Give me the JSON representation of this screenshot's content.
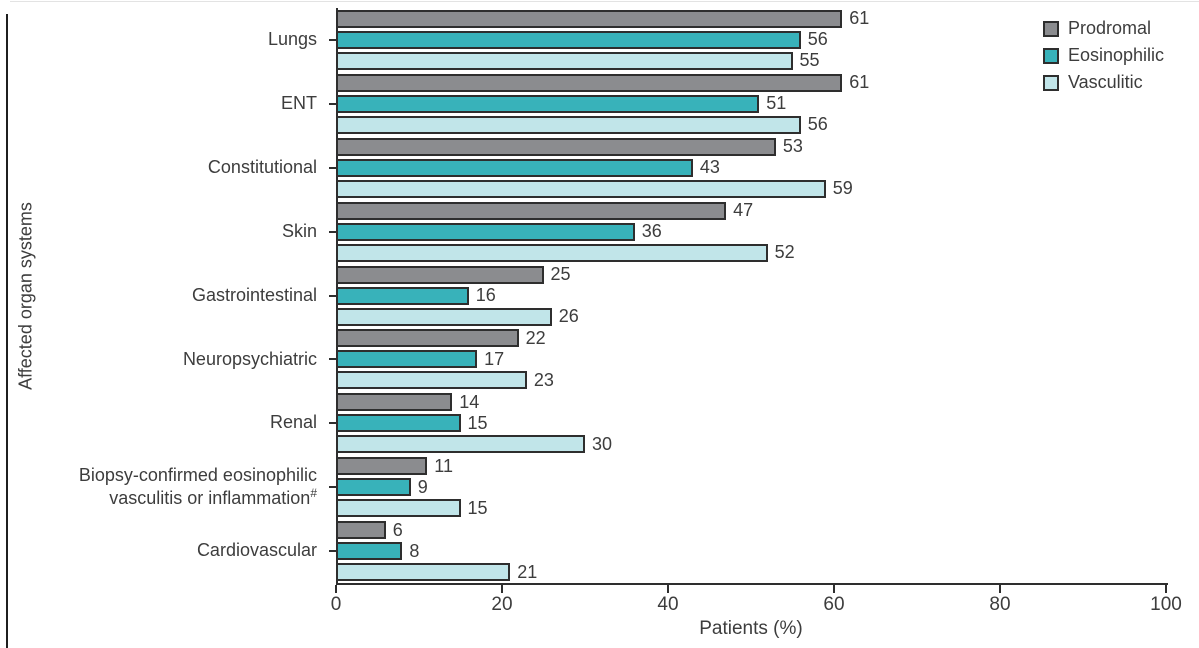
{
  "chart_data": {
    "type": "bar",
    "orientation": "horizontal",
    "title": "",
    "xlabel": "Patients (%)",
    "ylabel": "Affected organ systems",
    "xlim": [
      0,
      100
    ],
    "xticks": [
      0,
      20,
      40,
      60,
      80,
      100
    ],
    "grid": false,
    "legend_position": "top-right",
    "categories": [
      "Lungs",
      "ENT",
      "Constitutional",
      "Skin",
      "Gastrointestinal",
      "Neuropsychiatric",
      "Renal",
      "Biopsy-confirmed eosinophilic vasculitis or inflammation#",
      "Cardiovascular"
    ],
    "series": [
      {
        "name": "Prodromal",
        "color": "#8b8c8f",
        "values": [
          61,
          61,
          53,
          47,
          25,
          22,
          14,
          11,
          6
        ]
      },
      {
        "name": "Eosinophilic",
        "color": "#38b2ba",
        "values": [
          56,
          51,
          43,
          36,
          16,
          17,
          15,
          9,
          8
        ]
      },
      {
        "name": "Vasculitic",
        "color": "#c1e5e9",
        "values": [
          55,
          56,
          59,
          52,
          26,
          23,
          30,
          15,
          21
        ]
      }
    ],
    "bar_border_color": "#2e2e2e",
    "axis_color": "#2e2e2e",
    "text_color": "#3d3d3d"
  }
}
